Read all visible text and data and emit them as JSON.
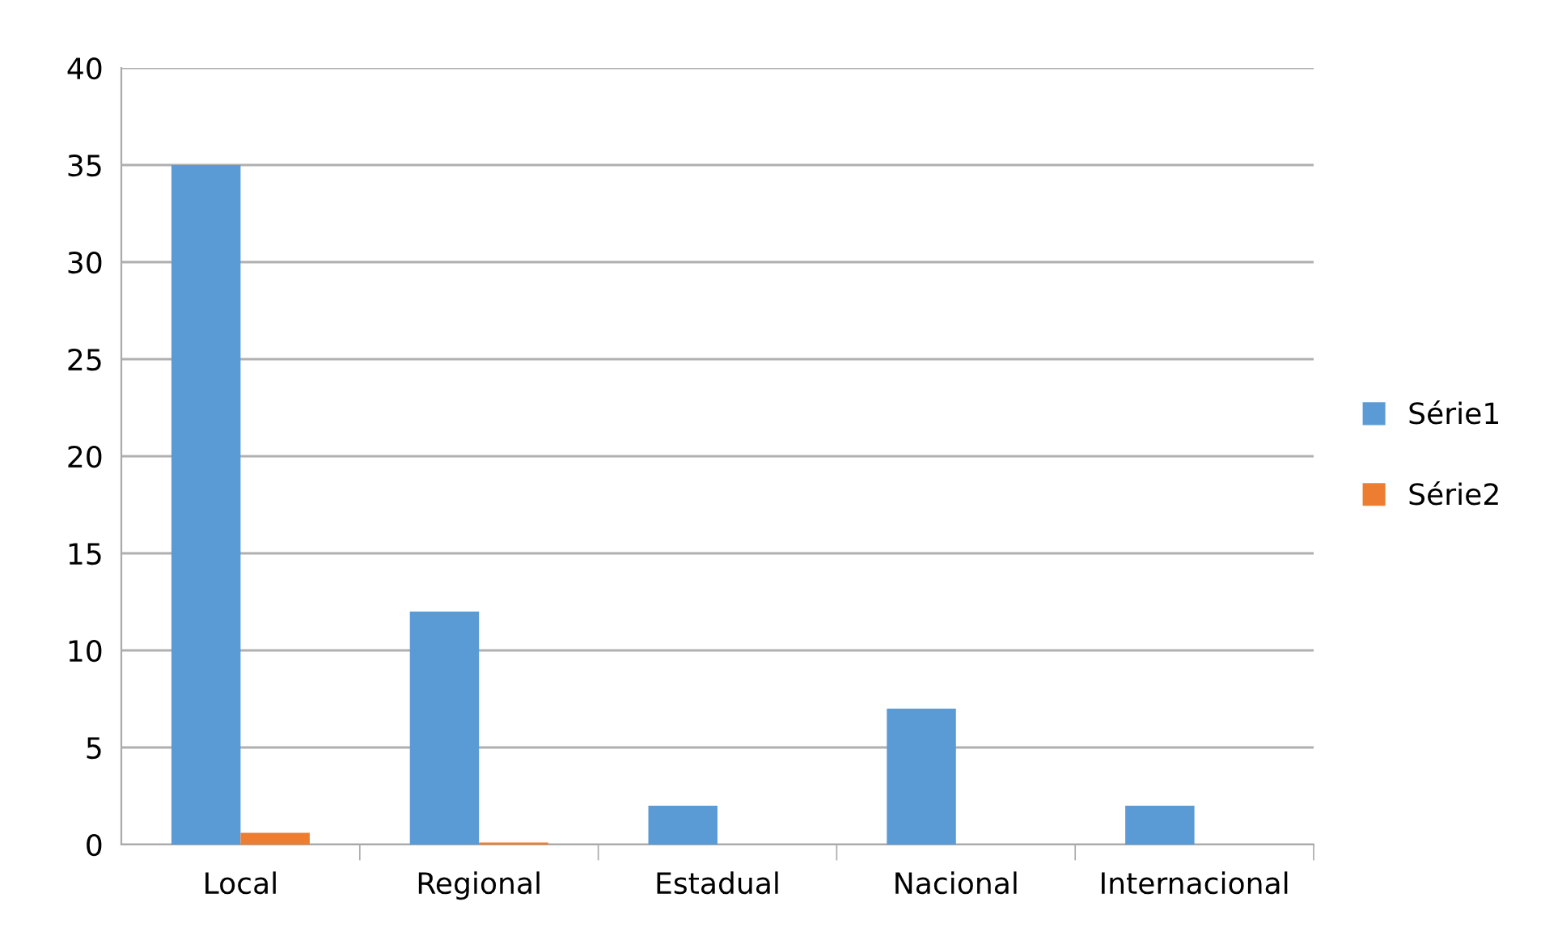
{
  "chart_data": {
    "type": "bar",
    "categories": [
      "Local",
      "Regional",
      "Estadual",
      "Nacional",
      "Internacional"
    ],
    "series": [
      {
        "name": "Série1",
        "color": "#5b9bd5",
        "values": [
          35,
          12,
          2,
          7,
          2
        ]
      },
      {
        "name": "Série2",
        "color": "#ed7d31",
        "values": [
          0.6,
          0.1,
          0,
          0,
          0
        ]
      }
    ],
    "ylim": [
      0,
      40
    ],
    "yticks": [
      0,
      5,
      10,
      15,
      20,
      25,
      30,
      35,
      40
    ],
    "grid": "y",
    "legend": "right"
  }
}
